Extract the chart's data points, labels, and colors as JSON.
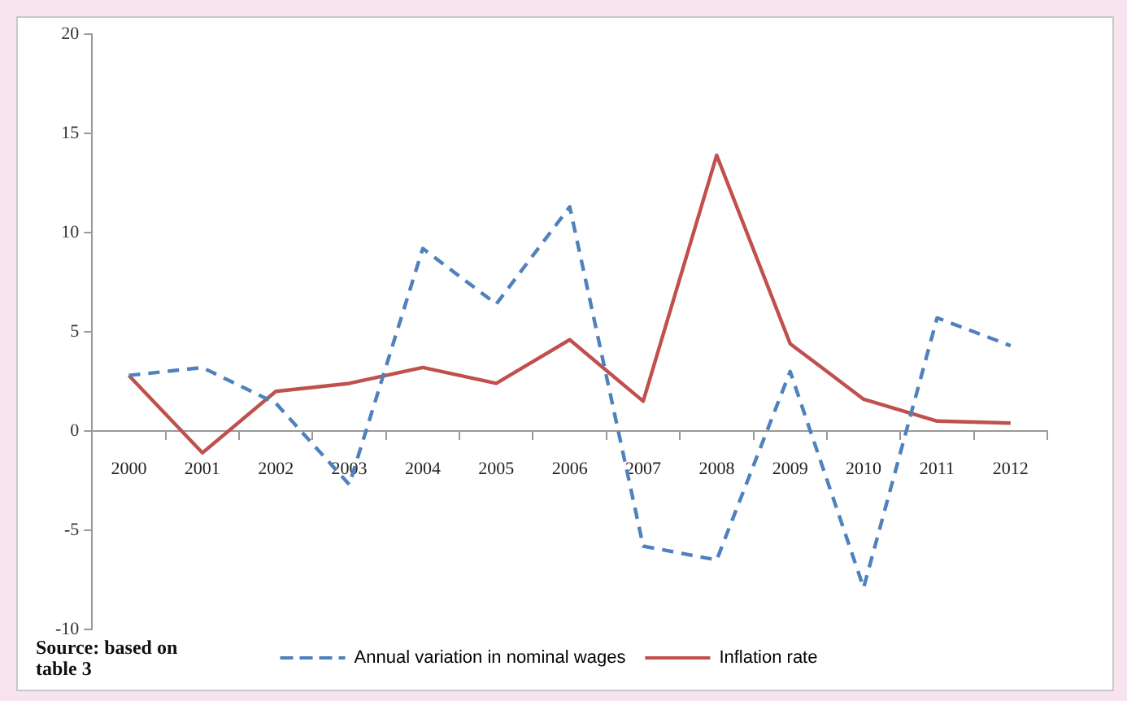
{
  "chart_data": {
    "type": "line",
    "categories": [
      "2000",
      "2001",
      "2002",
      "2003",
      "2004",
      "2005",
      "2006",
      "2007",
      "2008",
      "2009",
      "2010",
      "2011",
      "2012"
    ],
    "series": [
      {
        "name": "Annual variation in nominal wages",
        "color": "#4f81bd",
        "line_style": "dashed",
        "values": [
          2.8,
          3.2,
          1.4,
          -2.7,
          9.2,
          6.4,
          11.3,
          -5.8,
          -6.5,
          3.0,
          -7.9,
          5.7,
          4.3
        ]
      },
      {
        "name": "Inflation rate",
        "color": "#c0504d",
        "line_style": "solid",
        "values": [
          2.8,
          -1.1,
          2.0,
          2.4,
          3.2,
          2.4,
          4.6,
          1.5,
          13.9,
          4.4,
          1.6,
          0.5,
          0.4
        ]
      }
    ],
    "ylim": [
      -10,
      20
    ],
    "yticks": [
      -10,
      -5,
      0,
      5,
      10,
      15,
      20
    ],
    "grid": false,
    "legend": "bottom",
    "marker": "none",
    "annotations": [
      "Source: based on table 3"
    ]
  }
}
